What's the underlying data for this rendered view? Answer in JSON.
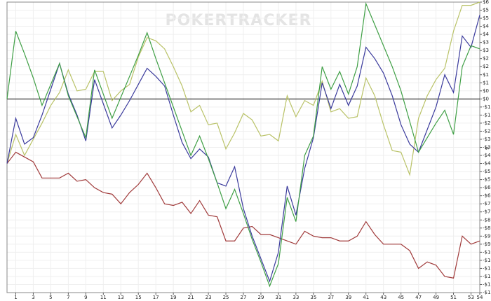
{
  "chart_data": {
    "type": "line",
    "watermark": "POKERTRACKER",
    "y_label": "$",
    "x": [
      0,
      1,
      2,
      3,
      4,
      5,
      6,
      7,
      8,
      9,
      10,
      11,
      12,
      13,
      14,
      15,
      16,
      17,
      18,
      19,
      20,
      21,
      22,
      23,
      24,
      25,
      26,
      27,
      28,
      29,
      30,
      31,
      32,
      33,
      34,
      35,
      36,
      37,
      38,
      39,
      40,
      41,
      42,
      43,
      44,
      45,
      46,
      47,
      48,
      49,
      50,
      51,
      52,
      53,
      54
    ],
    "xlim": [
      0,
      54
    ],
    "xticks": [
      1,
      3,
      5,
      7,
      9,
      11,
      13,
      15,
      17,
      19,
      21,
      23,
      25,
      27,
      29,
      31,
      33,
      35,
      37,
      39,
      41,
      43,
      45,
      47,
      49,
      51,
      53,
      54
    ],
    "ylim": [
      -12,
      6
    ],
    "yticks": [
      {
        "value": 6,
        "label": "$6"
      },
      {
        "value": 5.5,
        "label": "$5"
      },
      {
        "value": 5,
        "label": "$5"
      },
      {
        "value": 4.5,
        "label": "$4"
      },
      {
        "value": 4,
        "label": "$4"
      },
      {
        "value": 3.5,
        "label": "$3"
      },
      {
        "value": 3,
        "label": "$3"
      },
      {
        "value": 2.5,
        "label": "$2"
      },
      {
        "value": 2,
        "label": "$2"
      },
      {
        "value": 1.5,
        "label": "$1"
      },
      {
        "value": 1,
        "label": "$1"
      },
      {
        "value": 0.5,
        "label": "$0"
      },
      {
        "value": 0,
        "label": "$0"
      },
      {
        "value": -0.5,
        "label": "-$1"
      },
      {
        "value": -1,
        "label": "-$1"
      },
      {
        "value": -1.5,
        "label": "-$2"
      },
      {
        "value": -2,
        "label": "-$2"
      },
      {
        "value": -2.5,
        "label": "-$3"
      },
      {
        "value": -3,
        "label": "-$3"
      },
      {
        "value": -3.5,
        "label": "-$4"
      },
      {
        "value": -4,
        "label": "-$4"
      },
      {
        "value": -4.5,
        "label": "-$5"
      },
      {
        "value": -5,
        "label": "-$5"
      },
      {
        "value": -5.5,
        "label": "-$6"
      },
      {
        "value": -6,
        "label": "-$6"
      },
      {
        "value": -6.5,
        "label": "-$7"
      },
      {
        "value": -7,
        "label": "-$7"
      },
      {
        "value": -7.5,
        "label": "-$8"
      },
      {
        "value": -8,
        "label": "-$8"
      },
      {
        "value": -8.5,
        "label": "-$9"
      },
      {
        "value": -9,
        "label": "-$9"
      },
      {
        "value": -9.5,
        "label": "-$10"
      },
      {
        "value": -10,
        "label": "-$10"
      },
      {
        "value": -10.5,
        "label": "-$11"
      },
      {
        "value": -11,
        "label": "-$11"
      },
      {
        "value": -11.5,
        "label": "-$12"
      },
      {
        "value": -12,
        "label": "-$12"
      }
    ],
    "grid": true,
    "zero_line": 0,
    "series": [
      {
        "color": "#b9c267",
        "values": [
          -4.0,
          -2.2,
          -3.5,
          -2.5,
          -1.5,
          -0.4,
          0.4,
          1.8,
          0.5,
          0.6,
          1.7,
          1.7,
          -0.1,
          0.5,
          0.9,
          2.6,
          3.8,
          3.6,
          3.1,
          2.0,
          0.8,
          -0.8,
          -0.4,
          -1.6,
          -1.5,
          -3.1,
          -2.1,
          -0.9,
          -1.3,
          -2.3,
          -2.2,
          -2.6,
          0.2,
          -1.1,
          -0.1,
          -0.4,
          1.1,
          -0.8,
          -0.6,
          -1.2,
          -1.1,
          1.3,
          0.2,
          -1.6,
          -3.2,
          -3.3,
          -4.7,
          -1.2,
          0.2,
          1.2,
          1.9,
          4.2,
          5.8,
          5.8,
          6.0
        ]
      },
      {
        "color": "#a03a3a",
        "values": [
          -4.0,
          -3.3,
          -3.6,
          -3.9,
          -4.9,
          -4.9,
          -4.9,
          -4.6,
          -5.1,
          -5.0,
          -5.5,
          -5.8,
          -5.9,
          -6.5,
          -5.8,
          -5.3,
          -4.6,
          -5.5,
          -6.5,
          -6.6,
          -6.4,
          -7.1,
          -6.3,
          -7.2,
          -7.3,
          -8.8,
          -8.8,
          -8.0,
          -7.9,
          -8.4,
          -8.4,
          -8.6,
          -8.8,
          -9.0,
          -8.2,
          -8.5,
          -8.6,
          -8.6,
          -8.8,
          -8.8,
          -8.5,
          -7.6,
          -8.4,
          -9.0,
          -9.0,
          -9.0,
          -9.4,
          -10.5,
          -10.1,
          -10.3,
          -11.0,
          -11.1,
          -8.5,
          -9.0,
          -8.8
        ]
      },
      {
        "color": "#3a3a9c",
        "values": [
          -4.0,
          -1.2,
          -2.8,
          -2.4,
          -1.0,
          0.6,
          2.2,
          0.3,
          -1.0,
          -2.6,
          1.2,
          -0.3,
          -1.8,
          -1.0,
          -0.1,
          0.9,
          1.9,
          1.4,
          0.8,
          -1.0,
          -2.7,
          -3.7,
          -3.1,
          -3.6,
          -5.2,
          -5.4,
          -4.2,
          -6.8,
          -8.5,
          -9.9,
          -11.3,
          -9.5,
          -5.4,
          -7.2,
          -4.3,
          -2.4,
          1.0,
          -0.6,
          0.9,
          -0.4,
          0.8,
          3.2,
          2.5,
          1.6,
          0.2,
          -1.6,
          -2.8,
          -3.3,
          -1.9,
          -0.5,
          1.5,
          0.4,
          3.9,
          3.2,
          5.2
        ]
      },
      {
        "color": "#3f9f45",
        "values": [
          0,
          4.2,
          2.8,
          1.3,
          -0.4,
          0.9,
          2.2,
          0.2,
          -1.1,
          -2.4,
          1.8,
          0.3,
          -1.2,
          0.1,
          1.4,
          2.7,
          4.1,
          2.5,
          1.0,
          -0.5,
          -2.0,
          -3.5,
          -2.3,
          -3.7,
          -5.2,
          -6.8,
          -5.6,
          -7.1,
          -8.7,
          -10.1,
          -11.6,
          -10.2,
          -6.1,
          -7.6,
          -3.5,
          -2.3,
          2.0,
          0.6,
          1.7,
          0.3,
          2.0,
          5.9,
          4.6,
          3.3,
          2.0,
          0.5,
          -1.4,
          -3.3,
          -2.4,
          -1.5,
          -0.7,
          -2.2,
          2.0,
          3.3,
          3.1
        ]
      }
    ]
  }
}
